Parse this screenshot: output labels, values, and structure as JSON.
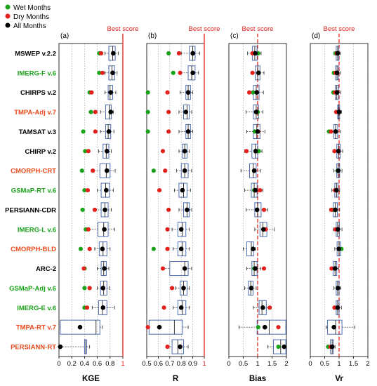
{
  "legend": {
    "placement": "top-left",
    "items": [
      {
        "label": "Wet Months",
        "color": "#1aa31a"
      },
      {
        "label": "Dry Months",
        "color": "#e3211c"
      },
      {
        "label": "All Months",
        "color": "#000000"
      }
    ]
  },
  "products": [
    {
      "name": "MSWEP v.2.2",
      "color": "#000000"
    },
    {
      "name": "IMERG-F v.6",
      "color": "#1aa31a"
    },
    {
      "name": "CHIRPS v.2",
      "color": "#000000"
    },
    {
      "name": "TMPA-Adj v.7",
      "color": "#e84a1c"
    },
    {
      "name": "TAMSAT v.3",
      "color": "#000000"
    },
    {
      "name": "CHIRP v.2",
      "color": "#000000"
    },
    {
      "name": "CMORPH-CRT",
      "color": "#e84a1c"
    },
    {
      "name": "GSMaP-RT v.6",
      "color": "#1aa31a"
    },
    {
      "name": "PERSIANN-CDR",
      "color": "#000000"
    },
    {
      "name": "IMERG-L v.6",
      "color": "#1aa31a"
    },
    {
      "name": "CMORPH-BLD",
      "color": "#e84a1c"
    },
    {
      "name": "ARC-2",
      "color": "#000000"
    },
    {
      "name": "GSMaP-Adj v.6",
      "color": "#1aa31a"
    },
    {
      "name": "IMERG-E v.6",
      "color": "#1aa31a"
    },
    {
      "name": "TMPA-RT v.7",
      "color": "#e84a1c"
    },
    {
      "name": "PERSIANN-RT",
      "color": "#e84a1c"
    }
  ],
  "chart_data": [
    {
      "panel": "(a)",
      "type": "box",
      "xlabel": "KGE",
      "xlim": [
        0,
        1
      ],
      "ticks": [
        0,
        0.2,
        0.4,
        0.6,
        0.8,
        1
      ],
      "tick_labels": [
        "0",
        "0.2",
        "0.4",
        "0.6",
        "0.8",
        "1"
      ],
      "best_score": 1,
      "best_label": "Best score",
      "rows": [
        {
          "wmin": 0.72,
          "q1": 0.78,
          "med": 0.84,
          "q3": 0.88,
          "wmax": 0.93,
          "all": 0.85,
          "wet": 0.63,
          "dry": 0.66
        },
        {
          "wmin": 0.72,
          "q1": 0.78,
          "med": 0.83,
          "q3": 0.87,
          "wmax": 0.91,
          "all": 0.84,
          "wet": 0.63,
          "dry": 0.68
        },
        {
          "wmin": 0.72,
          "q1": 0.77,
          "med": 0.8,
          "q3": 0.84,
          "wmax": 0.89,
          "all": 0.81,
          "wet": 0.48,
          "dry": 0.51
        },
        {
          "wmin": 0.65,
          "q1": 0.73,
          "med": 0.79,
          "q3": 0.82,
          "wmax": 0.85,
          "all": 0.81,
          "wet": 0.5,
          "dry": 0.57
        },
        {
          "wmin": 0.65,
          "q1": 0.73,
          "med": 0.77,
          "q3": 0.81,
          "wmax": 0.86,
          "all": 0.78,
          "wet": 0.38,
          "dry": 0.57
        },
        {
          "wmin": 0.62,
          "q1": 0.69,
          "med": 0.74,
          "q3": 0.78,
          "wmax": 0.82,
          "all": 0.75,
          "wet": 0.41,
          "dry": 0.46
        },
        {
          "wmin": 0.55,
          "q1": 0.64,
          "med": 0.74,
          "q3": 0.8,
          "wmax": 0.88,
          "all": 0.75,
          "wet": 0.36,
          "dry": 0.53
        },
        {
          "wmin": 0.6,
          "q1": 0.66,
          "med": 0.73,
          "q3": 0.79,
          "wmax": 0.85,
          "all": 0.74,
          "wet": 0.4,
          "dry": 0.45
        },
        {
          "wmin": 0.57,
          "q1": 0.66,
          "med": 0.72,
          "q3": 0.77,
          "wmax": 0.82,
          "all": 0.72,
          "wet": 0.37,
          "dry": 0.56
        },
        {
          "wmin": 0.44,
          "q1": 0.61,
          "med": 0.7,
          "q3": 0.77,
          "wmax": 0.87,
          "all": 0.71,
          "wet": 0.42,
          "dry": 0.46
        },
        {
          "wmin": 0.56,
          "q1": 0.63,
          "med": 0.69,
          "q3": 0.75,
          "wmax": 0.8,
          "all": 0.68,
          "wet": 0.34,
          "dry": 0.48
        },
        {
          "wmin": 0.6,
          "q1": 0.66,
          "med": 0.7,
          "q3": 0.74,
          "wmax": 0.78,
          "all": 0.71,
          "wet": 0.4,
          "dry": 0.39
        },
        {
          "wmin": 0.6,
          "q1": 0.65,
          "med": 0.7,
          "q3": 0.75,
          "wmax": 0.79,
          "all": 0.69,
          "wet": 0.4,
          "dry": 0.48
        },
        {
          "wmin": 0.52,
          "q1": 0.62,
          "med": 0.68,
          "q3": 0.75,
          "wmax": 0.87,
          "all": 0.69,
          "wet": 0.4,
          "dry": 0.44
        },
        {
          "wmin": 0.02,
          "q1": 0.02,
          "med": 0.58,
          "q3": 0.64,
          "wmax": 0.68,
          "all": 0.33,
          "wet": null,
          "dry": null
        },
        {
          "wmin": 0.02,
          "q1": 0.4,
          "med": 0.42,
          "q3": 0.43,
          "wmax": 0.48,
          "all": 0.02,
          "wet": null,
          "dry": null
        }
      ]
    },
    {
      "panel": "(b)",
      "type": "box",
      "xlabel": "R",
      "xlim": [
        0.5,
        1
      ],
      "ticks": [
        0.5,
        0.6,
        0.7,
        0.8,
        0.9,
        1
      ],
      "tick_labels": [
        "0.5",
        "0.6",
        "0.7",
        "0.8",
        "0.9",
        "1"
      ],
      "best_score": 1,
      "best_label": "Best score",
      "rows": [
        {
          "wmin": 0.8,
          "q1": 0.87,
          "med": 0.9,
          "q3": 0.92,
          "wmax": 0.96,
          "all": 0.9,
          "wet": 0.69,
          "dry": 0.78
        },
        {
          "wmin": 0.8,
          "q1": 0.86,
          "med": 0.89,
          "q3": 0.92,
          "wmax": 0.95,
          "all": 0.9,
          "wet": 0.73,
          "dry": 0.79
        },
        {
          "wmin": 0.79,
          "q1": 0.84,
          "med": 0.86,
          "q3": 0.88,
          "wmax": 0.9,
          "all": 0.86,
          "wet": 0.51,
          "dry": 0.68
        },
        {
          "wmin": 0.78,
          "q1": 0.82,
          "med": 0.85,
          "q3": 0.87,
          "wmax": 0.89,
          "all": 0.84,
          "wet": 0.51,
          "dry": 0.69
        },
        {
          "wmin": 0.78,
          "q1": 0.84,
          "med": 0.86,
          "q3": 0.88,
          "wmax": 0.9,
          "all": 0.86,
          "wet": 0.51,
          "dry": 0.69
        },
        {
          "wmin": 0.78,
          "q1": 0.81,
          "med": 0.83,
          "q3": 0.85,
          "wmax": 0.87,
          "all": 0.83,
          "wet": null,
          "dry": 0.64
        },
        {
          "wmin": 0.76,
          "q1": 0.8,
          "med": 0.83,
          "q3": 0.86,
          "wmax": 0.89,
          "all": 0.83,
          "wet": 0.56,
          "dry": 0.66
        },
        {
          "wmin": 0.74,
          "q1": 0.78,
          "med": 0.82,
          "q3": 0.85,
          "wmax": 0.88,
          "all": 0.81,
          "wet": null,
          "dry": 0.61
        },
        {
          "wmin": 0.78,
          "q1": 0.82,
          "med": 0.85,
          "q3": 0.87,
          "wmax": 0.89,
          "all": 0.85,
          "wet": null,
          "dry": 0.69
        },
        {
          "wmin": 0.72,
          "q1": 0.77,
          "med": 0.81,
          "q3": 0.84,
          "wmax": 0.87,
          "all": 0.8,
          "wet": null,
          "dry": 0.68
        },
        {
          "wmin": 0.73,
          "q1": 0.77,
          "med": 0.81,
          "q3": 0.84,
          "wmax": 0.87,
          "all": 0.8,
          "wet": 0.56,
          "dry": 0.68
        },
        {
          "wmin": 0.64,
          "q1": 0.7,
          "med": 0.83,
          "q3": 0.86,
          "wmax": 0.89,
          "all": 0.83,
          "wet": null,
          "dry": 0.64
        },
        {
          "wmin": 0.75,
          "q1": 0.79,
          "med": 0.82,
          "q3": 0.85,
          "wmax": 0.87,
          "all": 0.82,
          "wet": null,
          "dry": 0.72
        },
        {
          "wmin": 0.73,
          "q1": 0.77,
          "med": 0.81,
          "q3": 0.84,
          "wmax": 0.87,
          "all": 0.8,
          "wet": null,
          "dry": 0.65
        },
        {
          "wmin": 0.52,
          "q1": 0.52,
          "med": 0.74,
          "q3": 0.81,
          "wmax": 0.86,
          "all": 0.61,
          "wet": null,
          "dry": 0.51
        },
        {
          "wmin": 0.68,
          "q1": 0.72,
          "med": 0.77,
          "q3": 0.82,
          "wmax": 0.86,
          "all": 0.79,
          "wet": null,
          "dry": 0.68
        }
      ]
    },
    {
      "panel": "(c)",
      "type": "box",
      "xlabel": "Bias",
      "xlim": [
        0,
        2
      ],
      "ticks": [
        0,
        0.5,
        1,
        1.5,
        2
      ],
      "tick_labels": [
        "0",
        "0.5",
        "1",
        "1.5",
        "2"
      ],
      "best_score": 1,
      "best_label": "Best score",
      "rows": [
        {
          "wmin": 0.65,
          "q1": 0.82,
          "med": 0.9,
          "q3": 0.98,
          "wmax": 1.12,
          "all": 0.92,
          "wet": 1.02,
          "dry": 0.82
        },
        {
          "wmin": 0.8,
          "q1": 0.92,
          "med": 1.0,
          "q3": 1.08,
          "wmax": 1.22,
          "all": 1.03,
          "wet": 1.04,
          "dry": 0.82
        },
        {
          "wmin": 0.68,
          "q1": 0.85,
          "med": 0.95,
          "q3": 1.05,
          "wmax": 1.2,
          "all": 0.97,
          "wet": 0.84,
          "dry": 0.71
        },
        {
          "wmin": 0.6,
          "q1": 0.85,
          "med": 0.95,
          "q3": 1.03,
          "wmax": 1.18,
          "all": 0.95,
          "wet": 1.0,
          "dry": 0.95
        },
        {
          "wmin": 0.62,
          "q1": 0.85,
          "med": 0.97,
          "q3": 1.08,
          "wmax": 1.25,
          "all": 1.0,
          "wet": 0.9,
          "dry": 1.02
        },
        {
          "wmin": 0.55,
          "q1": 0.8,
          "med": 0.92,
          "q3": 1.0,
          "wmax": 1.15,
          "all": 0.93,
          "wet": 1.04,
          "dry": 0.61
        },
        {
          "wmin": 0.42,
          "q1": 0.72,
          "med": 0.85,
          "q3": 0.95,
          "wmax": 1.1,
          "all": 0.88,
          "wet": 0.88,
          "dry": 0.88
        },
        {
          "wmin": 0.55,
          "q1": 0.78,
          "med": 0.88,
          "q3": 0.98,
          "wmax": 1.18,
          "all": 0.92,
          "wet": 0.88,
          "dry": 1.08
        },
        {
          "wmin": 0.6,
          "q1": 0.9,
          "med": 1.0,
          "q3": 1.12,
          "wmax": 1.35,
          "all": 0.98,
          "wet": null,
          "dry": 1.22
        },
        {
          "wmin": 0.9,
          "q1": 1.08,
          "med": 1.18,
          "q3": 1.32,
          "wmax": 1.58,
          "all": 1.2,
          "wet": null,
          "dry": 1.28
        },
        {
          "wmin": 0.5,
          "q1": 0.62,
          "med": 0.78,
          "q3": 0.86,
          "wmax": 0.92,
          "all": 0.84,
          "wet": null,
          "dry": null
        },
        {
          "wmin": 0.62,
          "q1": 0.8,
          "med": 0.88,
          "q3": 0.98,
          "wmax": 1.1,
          "all": 0.92,
          "wet": 0.88,
          "dry": 1.22
        },
        {
          "wmin": 0.55,
          "q1": 0.68,
          "med": 0.76,
          "q3": 0.84,
          "wmax": 0.95,
          "all": 0.78,
          "wet": null,
          "dry": null
        },
        {
          "wmin": 0.85,
          "q1": 1.05,
          "med": 1.15,
          "q3": 1.3,
          "wmax": 1.45,
          "all": 1.18,
          "wet": null,
          "dry": 1.42
        },
        {
          "wmin": 0.35,
          "q1": 0.98,
          "med": 1.4,
          "q3": 1.98,
          "wmax": 1.98,
          "all": 1.25,
          "wet": 1.02,
          "dry": 1.72
        },
        {
          "wmin": 1.35,
          "q1": 1.55,
          "med": 1.8,
          "q3": 1.98,
          "wmax": 1.98,
          "all": 1.92,
          "wet": 1.72,
          "dry": null
        }
      ]
    },
    {
      "panel": "(d)",
      "type": "box",
      "xlabel": "Vr",
      "xlim": [
        0,
        2
      ],
      "ticks": [
        0,
        0.5,
        1,
        1.5,
        2
      ],
      "tick_labels": [
        "0",
        "0.5",
        "1",
        "1.5",
        "2"
      ],
      "best_score": 1,
      "best_label": "Best score",
      "rows": [
        {
          "wmin": 0.82,
          "q1": 0.9,
          "med": 0.95,
          "q3": 0.99,
          "wmax": 1.05,
          "all": 0.95,
          "wet": 0.88,
          "dry": 0.92
        },
        {
          "wmin": 0.8,
          "q1": 0.88,
          "med": 0.93,
          "q3": 0.98,
          "wmax": 1.05,
          "all": 0.93,
          "wet": 0.82,
          "dry": 0.88
        },
        {
          "wmin": 0.78,
          "q1": 0.87,
          "med": 0.92,
          "q3": 0.98,
          "wmax": 1.06,
          "all": 0.93,
          "wet": 0.8,
          "dry": 0.86
        },
        {
          "wmin": 0.88,
          "q1": 0.95,
          "med": 0.98,
          "q3": 1.02,
          "wmax": 1.08,
          "all": 1.0,
          "wet": null,
          "dry": 0.9
        },
        {
          "wmin": 0.7,
          "q1": 0.82,
          "med": 0.88,
          "q3": 0.95,
          "wmax": 1.05,
          "all": 0.88,
          "wet": 0.65,
          "dry": 0.72
        },
        {
          "wmin": 0.82,
          "q1": 0.92,
          "med": 0.98,
          "q3": 1.04,
          "wmax": 1.12,
          "all": 0.98,
          "wet": null,
          "dry": 0.84
        },
        {
          "wmin": 0.82,
          "q1": 0.92,
          "med": 0.97,
          "q3": 1.02,
          "wmax": 1.1,
          "all": 0.97,
          "wet": 0.95,
          "dry": null
        },
        {
          "wmin": 0.75,
          "q1": 0.85,
          "med": 0.91,
          "q3": 0.96,
          "wmax": 1.02,
          "all": 0.91,
          "wet": null,
          "dry": 0.86
        },
        {
          "wmin": 0.68,
          "q1": 0.8,
          "med": 0.87,
          "q3": 0.94,
          "wmax": 1.02,
          "all": 0.87,
          "wet": 0.78,
          "dry": 0.73
        },
        {
          "wmin": 0.8,
          "q1": 0.9,
          "med": 0.95,
          "q3": 1.01,
          "wmax": 1.1,
          "all": 0.96,
          "wet": null,
          "dry": 0.88
        },
        {
          "wmin": 0.85,
          "q1": 0.93,
          "med": 1.0,
          "q3": 1.05,
          "wmax": 1.12,
          "all": 0.99,
          "wet": 1.08,
          "dry": null
        },
        {
          "wmin": 0.7,
          "q1": 0.8,
          "med": 0.86,
          "q3": 0.92,
          "wmax": 0.98,
          "all": 0.86,
          "wet": null,
          "dry": 0.74
        },
        {
          "wmin": 0.82,
          "q1": 0.9,
          "med": 0.95,
          "q3": 1.0,
          "wmax": 1.06,
          "all": 0.96,
          "wet": null,
          "dry": null
        },
        {
          "wmin": 0.8,
          "q1": 0.9,
          "med": 0.95,
          "q3": 1.0,
          "wmax": 1.08,
          "all": 0.95,
          "wet": null,
          "dry": 0.84
        },
        {
          "wmin": 0.55,
          "q1": 0.6,
          "med": 0.88,
          "q3": 1.1,
          "wmax": 1.55,
          "all": 0.82,
          "wet": null,
          "dry": null
        },
        {
          "wmin": 0.62,
          "q1": 0.7,
          "med": 0.76,
          "q3": 0.8,
          "wmax": 0.86,
          "all": 0.76,
          "wet": 0.62,
          "dry": 0.7
        }
      ]
    }
  ]
}
